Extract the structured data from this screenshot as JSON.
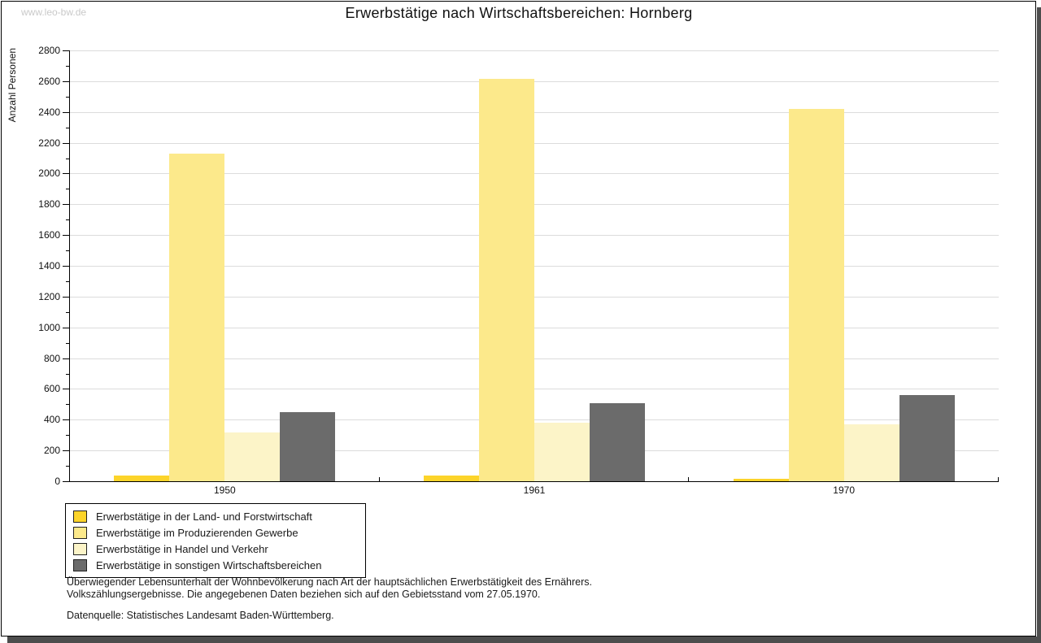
{
  "watermark": "www.leo-bw.de",
  "title": "Erwerbstätige nach Wirtschaftsbereichen: Hornberg",
  "chart_data": {
    "type": "bar",
    "title": "Erwerbstätige nach Wirtschaftsbereichen: Hornberg",
    "xlabel": "",
    "ylabel": "Anzahl Personen",
    "ylim": [
      0,
      2800
    ],
    "ytick_step": 200,
    "yminor_step": 100,
    "grid": true,
    "legend_position": "bottom-left",
    "categories": [
      "1950",
      "1961",
      "1970"
    ],
    "series": [
      {
        "name": "Erwerbstätige in der Land- und Forstwirtschaft",
        "color": "#fcd42a",
        "values": [
          35,
          38,
          16
        ]
      },
      {
        "name": "Erwerbstätige im Produzierenden Gewerbe",
        "color": "#fce98b",
        "values": [
          2130,
          2615,
          2422
        ]
      },
      {
        "name": "Erwerbstätige in Handel und Verkehr",
        "color": "#fcf4c8",
        "values": [
          315,
          380,
          370
        ]
      },
      {
        "name": "Erwerbstätige in sonstigen Wirtschaftsbereichen",
        "color": "#6b6b6b",
        "values": [
          450,
          505,
          560
        ]
      }
    ]
  },
  "footnotes": {
    "line1": "Überwiegender Lebensunterhalt der Wohnbevölkerung nach Art der hauptsächlichen Erwerbstätigkeit des Ernährers.",
    "line2": "Volkszählungsergebnisse. Die angegebenen Daten beziehen sich auf den Gebietsstand vom 27.05.1970.",
    "source": "Datenquelle: Statistisches Landesamt Baden-Württemberg."
  }
}
